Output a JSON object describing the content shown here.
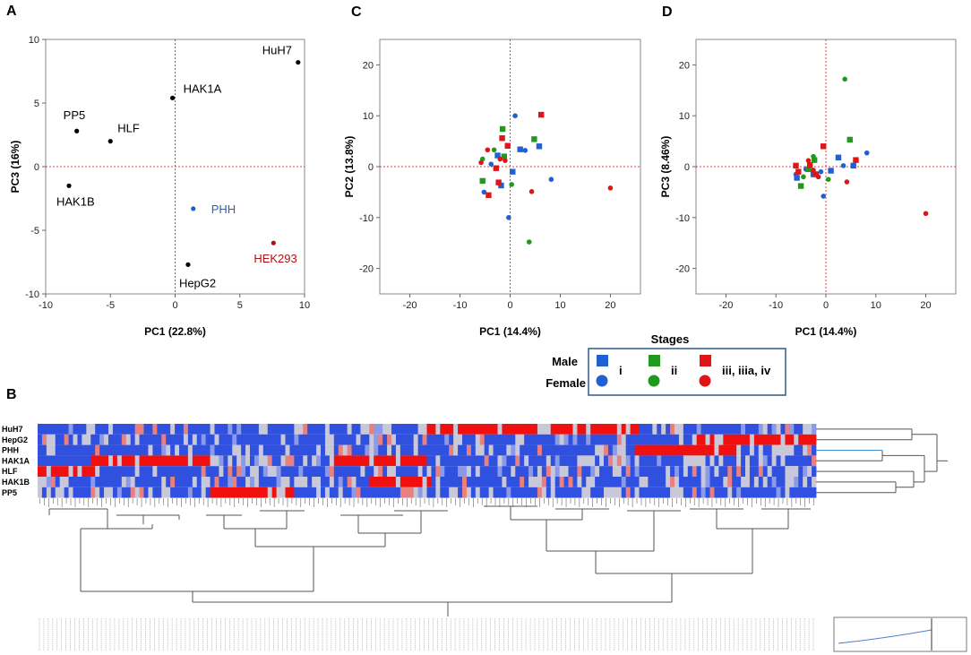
{
  "panel_letters": {
    "a": "A",
    "b": "B",
    "c": "C",
    "d": "D"
  },
  "colors": {
    "black": "#000000",
    "blue": "#2060d0",
    "darkred": "#b01010",
    "green": "#1f9a1f",
    "red": "#e01515",
    "axis_red": "#e04040",
    "legend_border": "#2e5a88"
  },
  "chart_data": [
    {
      "id": "A",
      "type": "scatter",
      "xlabel": "PC1 (22.8%)",
      "ylabel": "PC3 (16%)",
      "xlim": [
        -10,
        10
      ],
      "ylim": [
        -10,
        10
      ],
      "xticks": [
        "-10",
        "-5",
        "0",
        "5",
        "10"
      ],
      "yticks": [
        "10",
        "5",
        "0",
        "-5",
        "-10"
      ],
      "points": [
        {
          "label": "HuH7",
          "x": 9.5,
          "y": 8.2,
          "color": "#000000"
        },
        {
          "label": "HAK1A",
          "x": -0.2,
          "y": 5.4,
          "color": "#000000"
        },
        {
          "label": "PP5",
          "x": -7.6,
          "y": 2.8,
          "color": "#000000"
        },
        {
          "label": "HLF",
          "x": -5.0,
          "y": 2.0,
          "color": "#000000"
        },
        {
          "label": "HAK1B",
          "x": -8.2,
          "y": -1.5,
          "color": "#000000"
        },
        {
          "label": "PHH",
          "x": 1.4,
          "y": -3.3,
          "color": "#2060d0"
        },
        {
          "label": "HEK293",
          "x": 7.6,
          "y": -6.0,
          "color": "#b01010"
        },
        {
          "label": "HepG2",
          "x": 1.0,
          "y": -7.7,
          "color": "#000000"
        }
      ]
    },
    {
      "id": "C",
      "type": "scatter",
      "xlabel": "PC1 (14.4%)",
      "ylabel": "PC2 (13.8%)",
      "xlim": [
        -26,
        26
      ],
      "ylim": [
        -25,
        25
      ],
      "xticks": [
        "-20",
        "-10",
        "0",
        "10",
        "20"
      ],
      "yticks": [
        "20",
        "10",
        "0",
        "-10",
        "-20"
      ],
      "series": [
        {
          "name": "Male i",
          "marker": "square",
          "color": "#2060d0",
          "points": [
            [
              5.8,
              4.0
            ],
            [
              2.0,
              3.4
            ],
            [
              -2.5,
              2.2
            ],
            [
              -1.8,
              -3.7
            ],
            [
              0.5,
              -1.0
            ]
          ]
        },
        {
          "name": "Female i",
          "marker": "circle",
          "color": "#2060d0",
          "points": [
            [
              1.0,
              10.0
            ],
            [
              3.0,
              3.2
            ],
            [
              8.2,
              -2.5
            ],
            [
              -0.3,
              -10.0
            ],
            [
              -5.2,
              -5.0
            ],
            [
              -3.8,
              0.5
            ]
          ]
        },
        {
          "name": "Male ii",
          "marker": "square",
          "color": "#1f9a1f",
          "points": [
            [
              -1.5,
              7.4
            ],
            [
              4.8,
              5.4
            ],
            [
              -5.5,
              -2.8
            ],
            [
              -1.2,
              2.0
            ]
          ]
        },
        {
          "name": "Female ii",
          "marker": "circle",
          "color": "#1f9a1f",
          "points": [
            [
              3.8,
              -14.8
            ],
            [
              -5.5,
              1.5
            ],
            [
              0.3,
              -3.5
            ],
            [
              -3.2,
              3.3
            ]
          ]
        },
        {
          "name": "Male iii, iiia, iv",
          "marker": "square",
          "color": "#e01515",
          "points": [
            [
              6.2,
              10.2
            ],
            [
              -1.6,
              5.6
            ],
            [
              -0.5,
              4.1
            ],
            [
              -2.8,
              -0.3
            ],
            [
              -4.3,
              -5.6
            ],
            [
              -2.3,
              -3.1
            ]
          ]
        },
        {
          "name": "Female iii, iiia, iv",
          "marker": "circle",
          "color": "#e01515",
          "points": [
            [
              20.0,
              -4.2
            ],
            [
              4.3,
              -4.9
            ],
            [
              -5.8,
              0.8
            ],
            [
              -4.5,
              3.3
            ],
            [
              -2.0,
              1.5
            ],
            [
              -1.0,
              1.2
            ]
          ]
        }
      ]
    },
    {
      "id": "D",
      "type": "scatter",
      "xlabel": "PC1 (14.4%)",
      "ylabel": "PC3 (8.46%)",
      "xlim": [
        -26,
        26
      ],
      "ylim": [
        -25,
        25
      ],
      "xticks": [
        "-20",
        "-10",
        "0",
        "10",
        "20"
      ],
      "yticks": [
        "20",
        "10",
        "0",
        "-10",
        "-20"
      ],
      "series": [
        {
          "name": "Male i",
          "marker": "square",
          "color": "#2060d0",
          "points": [
            [
              5.5,
              0.2
            ],
            [
              2.5,
              1.8
            ],
            [
              -2.5,
              -1.5
            ],
            [
              -5.8,
              -2.2
            ],
            [
              1.0,
              -0.8
            ]
          ]
        },
        {
          "name": "Female i",
          "marker": "circle",
          "color": "#2060d0",
          "points": [
            [
              8.2,
              2.7
            ],
            [
              3.5,
              0.2
            ],
            [
              -0.5,
              -5.8
            ],
            [
              -1.0,
              -1.0
            ],
            [
              -4.0,
              -0.5
            ],
            [
              -6.0,
              -1.5
            ]
          ]
        },
        {
          "name": "Male ii",
          "marker": "square",
          "color": "#1f9a1f",
          "points": [
            [
              4.8,
              5.3
            ],
            [
              -2.3,
              1.3
            ],
            [
              -5.0,
              -3.8
            ],
            [
              -3.5,
              -0.5
            ]
          ]
        },
        {
          "name": "Female ii",
          "marker": "circle",
          "color": "#1f9a1f",
          "points": [
            [
              3.8,
              17.2
            ],
            [
              -2.5,
              2.0
            ],
            [
              0.5,
              -2.5
            ],
            [
              -4.5,
              -2.0
            ]
          ]
        },
        {
          "name": "Male iii, iiia, iv",
          "marker": "square",
          "color": "#e01515",
          "points": [
            [
              6.0,
              1.3
            ],
            [
              -0.5,
              4.0
            ],
            [
              -3.2,
              0.3
            ],
            [
              -5.5,
              -1.0
            ],
            [
              -2.0,
              -1.5
            ],
            [
              -6.0,
              0.2
            ]
          ]
        },
        {
          "name": "Female iii, iiia, iv",
          "marker": "circle",
          "color": "#e01515",
          "points": [
            [
              20.0,
              -9.2
            ],
            [
              4.2,
              -3.0
            ],
            [
              -5.5,
              -1.0
            ],
            [
              -3.5,
              1.2
            ],
            [
              -2.5,
              -0.7
            ],
            [
              -1.5,
              -2.0
            ]
          ]
        }
      ]
    },
    {
      "id": "B",
      "type": "heatmap",
      "rows": [
        "HuH7",
        "HepG2",
        "PHH",
        "HAK1A",
        "HLF",
        "HAK1B",
        "PP5"
      ],
      "num_columns": 176,
      "high_blocks": [
        {
          "row": "HuH7",
          "from": 88,
          "to": 135
        },
        {
          "row": "HepG2",
          "from": 148,
          "to": 175
        },
        {
          "row": "PHH",
          "from": 135,
          "to": 157
        },
        {
          "row": "HAK1A",
          "from": 12,
          "to": 38
        },
        {
          "row": "HAK1A",
          "from": 67,
          "to": 87
        },
        {
          "row": "HLF",
          "from": 0,
          "to": 12
        },
        {
          "row": "HAK1B",
          "from": 75,
          "to": 88
        },
        {
          "row": "PP5",
          "from": 39,
          "to": 57
        }
      ],
      "colors": {
        "low": "#3050e0",
        "mid": "#c8c8d8",
        "high": "#f01010"
      }
    }
  ],
  "legend": {
    "title": "Stages",
    "row_male": "Male",
    "row_female": "Female",
    "stages": [
      "i",
      "ii",
      "iii, iiia, iv"
    ]
  }
}
